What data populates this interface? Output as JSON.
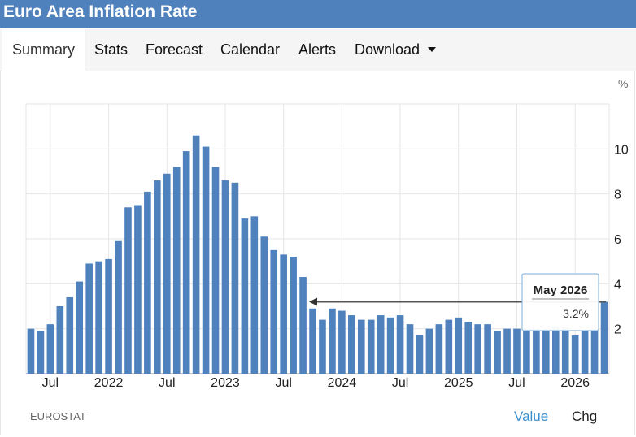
{
  "header": {
    "title": "Euro Area Inflation Rate"
  },
  "tabs": [
    {
      "label": "Summary",
      "active": true
    },
    {
      "label": "Stats"
    },
    {
      "label": "Forecast"
    },
    {
      "label": "Calendar"
    },
    {
      "label": "Alerts"
    },
    {
      "label": "Download",
      "dropdown": true
    }
  ],
  "footer": {
    "source": "EUROSTAT",
    "toggle_value": "Value",
    "toggle_chg": "Chg"
  },
  "tooltip": {
    "date": "May 2026",
    "value": "3.2%"
  },
  "colors": {
    "bar": "#4f81bd",
    "header": "#4f81bd",
    "grid": "#e6e6e6",
    "toggle_active": "#3a8fd1"
  },
  "chart_data": {
    "type": "bar",
    "unit": "%",
    "ylim": [
      0,
      12
    ],
    "y_ticks": [
      2,
      4,
      6,
      8,
      10
    ],
    "x_ticks": [
      {
        "label": "Jul",
        "index": 2
      },
      {
        "label": "2022",
        "index": 8
      },
      {
        "label": "Jul",
        "index": 14
      },
      {
        "label": "2023",
        "index": 20
      },
      {
        "label": "Jul",
        "index": 26
      },
      {
        "label": "2024",
        "index": 32
      },
      {
        "label": "Jul",
        "index": 38
      },
      {
        "label": "2025",
        "index": 44
      },
      {
        "label": "Jul",
        "index": 50
      },
      {
        "label": "2026",
        "index": 56
      }
    ],
    "grid": true,
    "values": [
      2.0,
      1.9,
      2.2,
      3.0,
      3.4,
      4.1,
      4.9,
      5.0,
      5.1,
      5.9,
      7.4,
      7.5,
      8.1,
      8.6,
      8.9,
      9.2,
      9.9,
      10.6,
      10.1,
      9.2,
      8.6,
      8.5,
      6.9,
      7.0,
      6.1,
      5.5,
      5.3,
      5.2,
      4.3,
      2.9,
      2.4,
      2.9,
      2.8,
      2.6,
      2.4,
      2.4,
      2.6,
      2.5,
      2.6,
      2.2,
      1.7,
      2.0,
      2.2,
      2.4,
      2.5,
      2.3,
      2.2,
      2.2,
      1.9,
      2.0,
      2.0,
      2.0,
      2.0,
      2.0,
      2.1,
      2.1,
      1.7,
      1.9,
      2.0,
      3.2
    ]
  }
}
